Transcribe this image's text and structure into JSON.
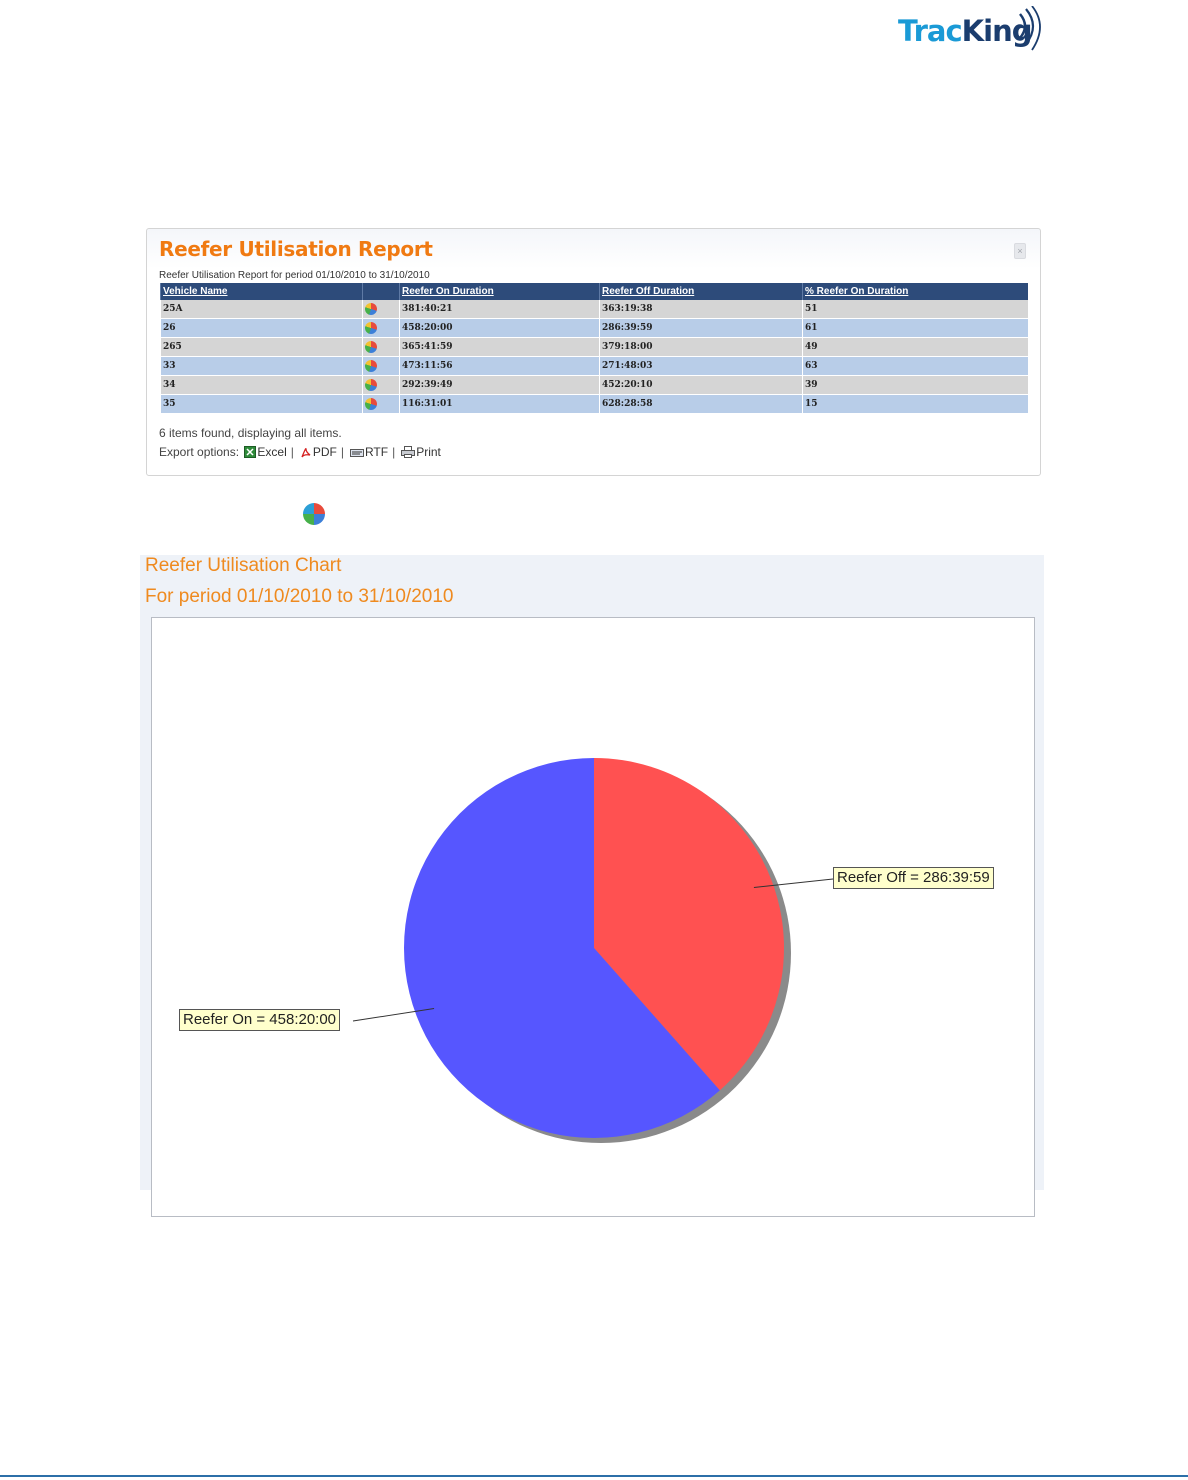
{
  "logo": {
    "text_a": "Trac",
    "text_b": "King"
  },
  "report": {
    "title": "Reefer Utilisation Report",
    "subtitle": "Reefer Utilisation Report for period 01/10/2010 to 31/10/2010",
    "columns": [
      "Vehicle Name",
      "",
      "Reefer On Duration",
      "Reefer Off Duration",
      "% Reefer On Duration"
    ],
    "rows": [
      {
        "vehicle": "25A",
        "on": "381:40:21",
        "off": "363:19:38",
        "pct": "51"
      },
      {
        "vehicle": "26",
        "on": "458:20:00",
        "off": "286:39:59",
        "pct": "61"
      },
      {
        "vehicle": "265",
        "on": "365:41:59",
        "off": "379:18:00",
        "pct": "49"
      },
      {
        "vehicle": "33",
        "on": "473:11:56",
        "off": "271:48:03",
        "pct": "63"
      },
      {
        "vehicle": "34",
        "on": "292:39:49",
        "off": "452:20:10",
        "pct": "39"
      },
      {
        "vehicle": "35",
        "on": "116:31:01",
        "off": "628:28:58",
        "pct": "15"
      }
    ],
    "found_text": "6 items found, displaying all items.",
    "export_label": "Export options:",
    "export_excel": "Excel",
    "export_pdf": "PDF",
    "export_rtf": "RTF",
    "export_print": "Print",
    "separator": "|"
  },
  "chart": {
    "title": "Reefer Utilisation Chart",
    "subtitle": "For period 01/10/2010 to 31/10/2010",
    "colors": {
      "on": "#5656ff",
      "off": "#ff5151"
    }
  },
  "chart_data": {
    "type": "pie",
    "title": "Reefer Utilisation Chart",
    "subtitle": "For period 01/10/2010 to 31/10/2010",
    "slices": [
      {
        "label": "Reefer Off = 286:39:59",
        "value": 286.6664,
        "color": "#ff5151"
      },
      {
        "label": "Reefer On = 458:20:00",
        "value": 458.3333,
        "color": "#5656ff"
      }
    ]
  }
}
